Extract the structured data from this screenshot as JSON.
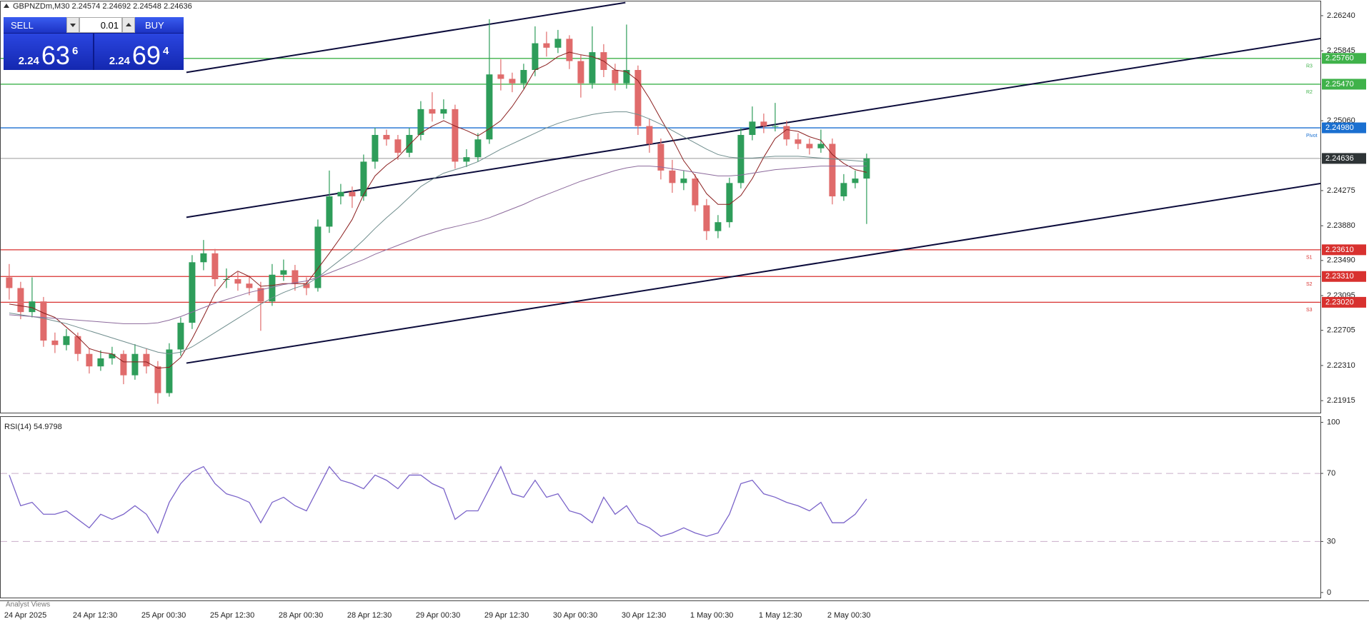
{
  "header": {
    "title": "GBPNZDm,M30  2.24574 2.24692 2.24548 2.24636"
  },
  "trade_panel": {
    "sell": "SELL",
    "buy": "BUY",
    "volume": "0.01",
    "bid": {
      "big": "2.24",
      "pips": "63",
      "point": "6"
    },
    "ask": {
      "big": "2.24",
      "pips": "69",
      "point": "4"
    }
  },
  "bottom_tab": "Analyst Views",
  "chart_data": [
    {
      "type": "candlestick",
      "categories": [
        "24 Apr 2025",
        null,
        null,
        null,
        null,
        null,
        "24 Apr 12:30",
        null,
        null,
        null,
        null,
        null,
        "25 Apr 00:30",
        null,
        null,
        null,
        null,
        null,
        "25 Apr 12:30",
        null,
        null,
        null,
        null,
        null,
        "28 Apr 00:30",
        null,
        null,
        null,
        null,
        null,
        "28 Apr 12:30",
        null,
        null,
        null,
        null,
        null,
        "29 Apr 00:30",
        null,
        null,
        null,
        null,
        null,
        "29 Apr 12:30",
        null,
        null,
        null,
        null,
        null,
        "30 Apr 00:30",
        null,
        null,
        null,
        null,
        null,
        "30 Apr 12:30",
        null,
        null,
        null,
        null,
        null,
        "1 May 00:30",
        null,
        null,
        null,
        null,
        null,
        "1 May 12:30",
        null,
        null,
        null,
        null,
        null,
        "2 May 00:30",
        null,
        null,
        null
      ],
      "open": [
        2.233,
        2.2318,
        2.2291,
        2.2303,
        2.2259,
        2.2254,
        2.2264,
        2.2244,
        2.223,
        2.2239,
        2.2244,
        2.222,
        2.2244,
        2.223,
        2.22,
        2.2249,
        2.2279,
        2.2347,
        2.2357,
        2.2328,
        2.2328,
        2.2323,
        2.2318,
        2.2303,
        2.2333,
        2.2338,
        2.2323,
        2.2318,
        2.2387,
        2.2421,
        2.2426,
        2.2421,
        2.246,
        2.249,
        2.2485,
        2.247,
        2.249,
        2.2519,
        2.2514,
        2.2519,
        2.246,
        2.2465,
        2.2485,
        2.2558,
        2.2553,
        2.2548,
        2.2563,
        2.2593,
        2.2588,
        2.2598,
        2.2573,
        2.2548,
        2.2583,
        2.2563,
        2.2548,
        2.2563,
        2.25,
        2.248,
        2.245,
        2.2436,
        2.2441,
        2.2411,
        2.2382,
        2.2392,
        2.2436,
        2.249,
        2.2505,
        2.25,
        2.25,
        2.2485,
        2.248,
        2.2475,
        2.248,
        2.2421,
        2.2436,
        2.2441
      ],
      "high": [
        2.2345,
        2.2325,
        2.233,
        2.2308,
        2.2268,
        2.2272,
        2.2268,
        2.225,
        2.2248,
        2.2252,
        2.2248,
        2.2255,
        2.225,
        2.2236,
        2.2256,
        2.2285,
        2.2355,
        2.2372,
        2.2362,
        2.234,
        2.2336,
        2.2332,
        2.2325,
        2.2345,
        2.235,
        2.2344,
        2.233,
        2.2395,
        2.245,
        2.2435,
        2.2432,
        2.2468,
        2.2498,
        2.2496,
        2.249,
        2.2498,
        2.2528,
        2.2538,
        2.253,
        2.2524,
        2.2474,
        2.2492,
        2.262,
        2.2575,
        2.256,
        2.257,
        2.2612,
        2.2606,
        2.2608,
        2.2602,
        2.258,
        2.2612,
        2.2592,
        2.257,
        2.2614,
        2.2568,
        2.2508,
        2.2486,
        2.2462,
        2.245,
        2.2446,
        2.2418,
        2.24,
        2.2442,
        2.2498,
        2.2522,
        2.2514,
        2.2526,
        2.2506,
        2.2492,
        2.2486,
        2.2496,
        2.2486,
        2.2446,
        2.245,
        2.2469
      ],
      "low": [
        2.2305,
        2.2283,
        2.2285,
        2.2252,
        2.2245,
        2.2248,
        2.2236,
        2.2222,
        2.2225,
        2.2232,
        2.221,
        2.2215,
        2.2222,
        2.2188,
        2.2196,
        2.2242,
        2.2272,
        2.2338,
        2.232,
        2.2318,
        2.2315,
        2.231,
        2.227,
        2.2298,
        2.2326,
        2.2315,
        2.231,
        2.2314,
        2.238,
        2.2412,
        2.2408,
        2.2416,
        2.2452,
        2.2478,
        2.2462,
        2.2465,
        2.2484,
        2.2505,
        2.2508,
        2.2452,
        2.2454,
        2.246,
        2.248,
        2.254,
        2.2538,
        2.2542,
        2.2556,
        2.2578,
        2.2582,
        2.2564,
        2.2532,
        2.2542,
        2.2555,
        2.254,
        2.2542,
        2.249,
        2.247,
        2.244,
        2.2425,
        2.2428,
        2.2404,
        2.2372,
        2.2374,
        2.2386,
        2.243,
        2.2484,
        2.2492,
        2.2494,
        2.2478,
        2.2474,
        2.2468,
        2.247,
        2.2412,
        2.2416,
        2.243,
        2.239
      ],
      "close": [
        2.2318,
        2.2291,
        2.2303,
        2.2259,
        2.2254,
        2.2264,
        2.2244,
        2.223,
        2.2239,
        2.2244,
        2.222,
        2.2244,
        2.223,
        2.22,
        2.2249,
        2.2279,
        2.2347,
        2.2357,
        2.2328,
        2.2328,
        2.2323,
        2.2318,
        2.2303,
        2.2333,
        2.2338,
        2.2323,
        2.2318,
        2.2387,
        2.2421,
        2.2426,
        2.2421,
        2.246,
        2.249,
        2.2485,
        2.247,
        2.249,
        2.2519,
        2.2514,
        2.2519,
        2.246,
        2.2465,
        2.2485,
        2.2558,
        2.2553,
        2.2548,
        2.2563,
        2.2593,
        2.2588,
        2.2598,
        2.2573,
        2.2548,
        2.2583,
        2.2563,
        2.2548,
        2.2563,
        2.25,
        2.248,
        2.245,
        2.2436,
        2.2441,
        2.2411,
        2.2382,
        2.2392,
        2.2436,
        2.249,
        2.2505,
        2.25,
        2.25,
        2.2485,
        2.248,
        2.2475,
        2.248,
        2.2421,
        2.2436,
        2.2441,
        2.24636
      ],
      "up_color": "#2e9d5a",
      "down_color": "#e06b6b",
      "overlays": [
        {
          "color": "#8b1f1f",
          "values": [
            2.23,
            2.2298,
            2.2296,
            2.229,
            2.2285,
            2.2274,
            2.2263,
            2.225,
            2.2246,
            2.2244,
            2.2235,
            2.2235,
            2.2235,
            2.2228,
            2.2229,
            2.224,
            2.2261,
            2.2286,
            2.2312,
            2.2328,
            2.2337,
            2.2331,
            2.232,
            2.2321,
            2.2323,
            2.2323,
            2.2323,
            2.234,
            2.2357,
            2.2375,
            2.2395,
            2.2423,
            2.2444,
            2.2456,
            2.2465,
            2.2479,
            2.2492,
            2.25,
            2.2506,
            2.25,
            2.2495,
            2.2489,
            2.2497,
            2.2506,
            2.2522,
            2.2541,
            2.2563,
            2.2569,
            2.2578,
            2.2583,
            2.258,
            2.2578,
            2.2573,
            2.2563,
            2.2561,
            2.2551,
            2.2531,
            2.2508,
            2.2486,
            2.2461,
            2.2444,
            2.2424,
            2.2412,
            2.2412,
            2.2422,
            2.2441,
            2.2465,
            2.2486,
            2.2496,
            2.2494,
            2.2488,
            2.2484,
            2.2468,
            2.2458,
            2.2451,
            2.2448
          ]
        },
        {
          "color": "#6f8d8d",
          "values": [
            2.229,
            2.2288,
            2.2286,
            2.2284,
            2.2281,
            2.2278,
            2.2274,
            2.227,
            2.2266,
            2.2262,
            2.2258,
            2.2254,
            2.225,
            2.2246,
            2.2244,
            2.2246,
            2.2252,
            2.226,
            2.2268,
            2.2276,
            2.2284,
            2.2292,
            2.23,
            2.2307,
            2.2313,
            2.2318,
            2.2322,
            2.233,
            2.234,
            2.235,
            2.236,
            2.2372,
            2.2385,
            2.2397,
            2.2408,
            2.242,
            2.2432,
            2.244,
            2.2447,
            2.2451,
            2.2455,
            2.246,
            2.2467,
            2.2474,
            2.248,
            2.2486,
            2.2492,
            2.2498,
            2.2503,
            2.2507,
            2.251,
            2.2513,
            2.2515,
            2.2516,
            2.2516,
            2.2513,
            2.2508,
            2.2502,
            2.2495,
            2.2488,
            2.2481,
            2.2474,
            2.2468,
            2.2465,
            2.2464,
            2.2464,
            2.2465,
            2.2466,
            2.2466,
            2.2466,
            2.2465,
            2.2464,
            2.2463,
            2.2462,
            2.2461,
            2.246
          ]
        },
        {
          "color": "#8c6a9c",
          "values": [
            2.2288,
            2.2287,
            2.2286,
            2.2285,
            2.2284,
            2.2283,
            2.2282,
            2.2281,
            2.228,
            2.2279,
            2.2278,
            2.2278,
            2.2278,
            2.2279,
            2.2282,
            2.2286,
            2.2291,
            2.2296,
            2.2301,
            2.2305,
            2.2309,
            2.2313,
            2.2316,
            2.2319,
            2.2322,
            2.2324,
            2.2326,
            2.233,
            2.2335,
            2.234,
            2.2345,
            2.235,
            2.2356,
            2.2361,
            2.2366,
            2.2371,
            2.2376,
            2.238,
            2.2384,
            2.2387,
            2.239,
            2.2393,
            2.2397,
            2.2402,
            2.2407,
            2.2412,
            2.2418,
            2.2423,
            2.2428,
            2.2433,
            2.2438,
            2.2442,
            2.2446,
            2.245,
            2.2453,
            2.2455,
            2.2455,
            2.2454,
            2.2452,
            2.245,
            2.2448,
            2.2446,
            2.2444,
            2.2444,
            2.2445,
            2.2447,
            2.2449,
            2.2451,
            2.2452,
            2.2453,
            2.2454,
            2.2455,
            2.2455,
            2.2455,
            2.2455,
            2.2455
          ]
        }
      ],
      "trendlines": [
        {
          "color": "#0b0b3b",
          "x": [
            16.0,
            54.4
          ],
          "y": [
            2.25603,
            2.26387
          ]
        },
        {
          "color": "#0b0b3b",
          "x": [
            16.0,
            115.3
          ],
          "y": [
            2.23975,
            2.25985
          ]
        },
        {
          "color": "#0b0b3b",
          "x": [
            16.0,
            115.3
          ],
          "y": [
            2.22337,
            2.24357
          ]
        }
      ],
      "levels": [
        {
          "name": "R3",
          "value": 2.2576,
          "label": "2.25760",
          "color": "#3fb24a"
        },
        {
          "name": "R2",
          "value": 2.2547,
          "label": "2.25470",
          "color": "#3fb24a"
        },
        {
          "name": "Pivot",
          "value": 2.2498,
          "label": "2.24980",
          "color": "#1a6fd0"
        },
        {
          "name": "S1",
          "value": 2.2361,
          "label": "2.23610",
          "color": "#d8312f"
        },
        {
          "name": "S2",
          "value": 2.2331,
          "label": "2.23310",
          "color": "#d8312f"
        },
        {
          "name": "S3",
          "value": 2.2302,
          "label": "2.23020",
          "color": "#d8312f"
        }
      ],
      "price_line": 2.24636,
      "price_line_color": "#9a9a9a",
      "ylim": [
        2.2178,
        2.264
      ],
      "yticks": [
        {
          "value": 2.2624,
          "label": "2.26240"
        },
        2.25845,
        {
          "value": 2.2506,
          "label": "2.25060"
        },
        2.24275,
        {
          "value": 2.2388,
          "label": "2.23880"
        },
        {
          "value": 2.2349,
          "label": "2.23490"
        },
        2.23095,
        2.22705,
        {
          "value": 2.2231,
          "label": "2.22310"
        },
        2.21915
      ]
    },
    {
      "type": "line",
      "title": "RSI(14) 54.9798",
      "color": "#7a63c9",
      "values": [
        69,
        51,
        53,
        46,
        46,
        48,
        43,
        38,
        46,
        43,
        46,
        51,
        46,
        35,
        53,
        64,
        71,
        74,
        64,
        58,
        56,
        53,
        41,
        53,
        56,
        51,
        48,
        61,
        74,
        66,
        64,
        61,
        69,
        66,
        61,
        69,
        69,
        64,
        61,
        43,
        48,
        48,
        61,
        74,
        58,
        56,
        66,
        56,
        58,
        48,
        46,
        41,
        56,
        46,
        51,
        41,
        38,
        33,
        35,
        38,
        35,
        33,
        35,
        46,
        64,
        66,
        58,
        56,
        53,
        51,
        48,
        53,
        41,
        41,
        46,
        54.9798
      ],
      "ylim": [
        -3.4,
        103.6
      ],
      "yticks": [
        100,
        70,
        30,
        0
      ],
      "levels": [
        70,
        30
      ],
      "level_color": "#c9aec9"
    }
  ]
}
